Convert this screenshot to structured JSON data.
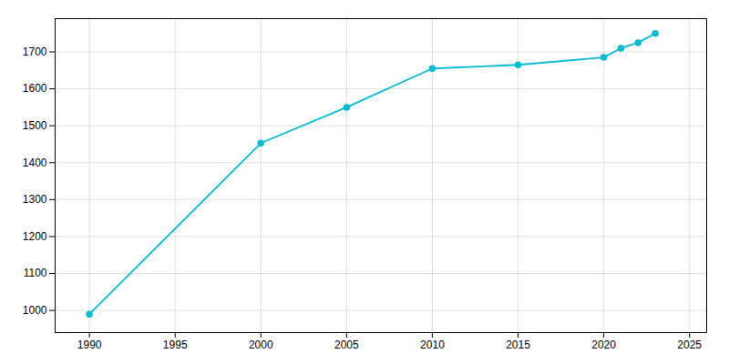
{
  "chart_data": {
    "type": "line",
    "x": [
      1990,
      2000,
      2005,
      2010,
      2015,
      2020,
      2021,
      2022,
      2023
    ],
    "values": [
      990,
      1453,
      1550,
      1655,
      1665,
      1685,
      1710,
      1725,
      1750
    ],
    "color": "#00BCD4",
    "marker": "circle",
    "xlim": [
      1988,
      2026
    ],
    "ylim": [
      940,
      1790
    ],
    "xticks": [
      1990,
      1995,
      2000,
      2005,
      2010,
      2015,
      2020,
      2025
    ],
    "yticks": [
      1000,
      1100,
      1200,
      1300,
      1400,
      1500,
      1600,
      1700
    ],
    "grid": true
  }
}
